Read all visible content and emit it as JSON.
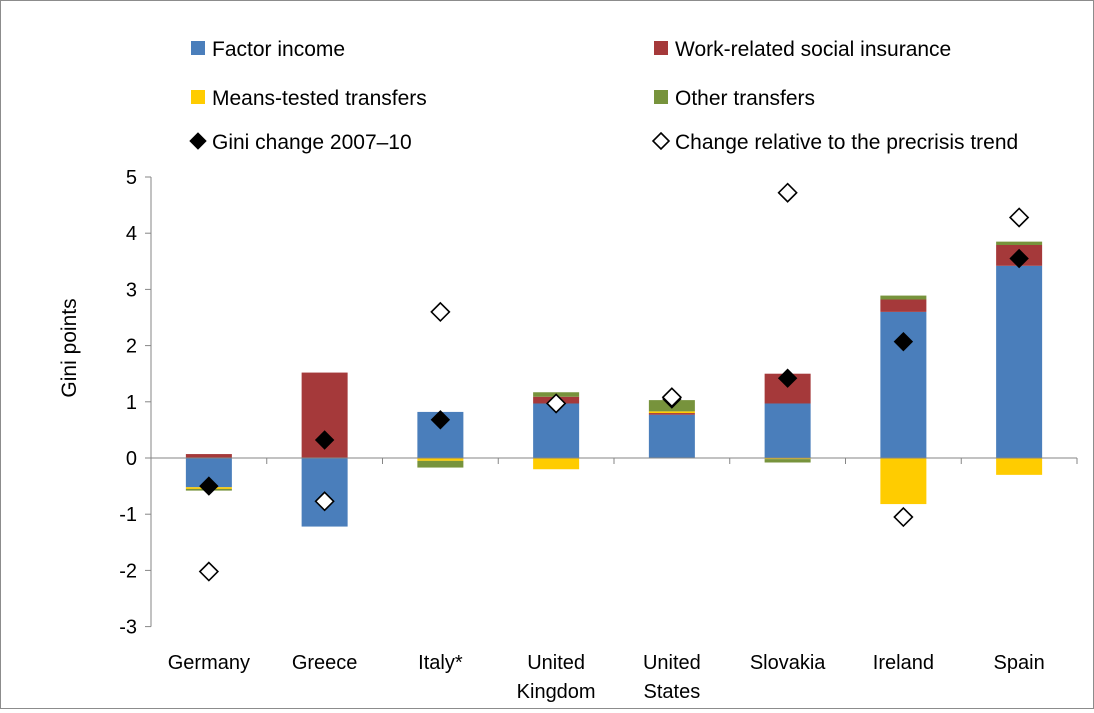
{
  "chart_data": {
    "type": "bar",
    "stacked": true,
    "title": "",
    "xlabel": "",
    "ylabel": "Gini points",
    "ylim": [
      -3,
      5
    ],
    "yticks": [
      "5",
      "4",
      "3",
      "2",
      "1",
      "0",
      "-1",
      "-2",
      "-3"
    ],
    "grid": false,
    "legend_position": "top",
    "categories": [
      [
        "Germany"
      ],
      [
        "Greece"
      ],
      [
        "Italy*"
      ],
      [
        "United",
        "Kingdom"
      ],
      [
        "United",
        "States"
      ],
      [
        "Slovakia"
      ],
      [
        "Ireland"
      ],
      [
        "Spain"
      ]
    ],
    "series": [
      {
        "name": "Factor income",
        "kind": "bar",
        "color": "#4a7ebb",
        "values": [
          -0.52,
          -1.22,
          0.82,
          0.97,
          0.77,
          0.97,
          2.6,
          3.42
        ]
      },
      {
        "name": "Work-related social insurance",
        "kind": "bar",
        "color": "#a5393a",
        "values": [
          0.07,
          1.52,
          0.0,
          0.12,
          0.03,
          0.53,
          0.22,
          0.37
        ]
      },
      {
        "name": "Means-tested transfers",
        "kind": "bar",
        "color": "#ffcc00",
        "values": [
          -0.03,
          0.0,
          -0.05,
          -0.2,
          0.03,
          -0.02,
          -0.82,
          -0.3
        ]
      },
      {
        "name": "Other transfers",
        "kind": "bar",
        "color": "#77933c",
        "values": [
          -0.03,
          0.0,
          -0.12,
          0.08,
          0.2,
          -0.06,
          0.07,
          0.06
        ]
      },
      {
        "name": "Gini change 2007–10",
        "kind": "marker",
        "style": "filled-diamond",
        "values": [
          -0.5,
          0.32,
          0.68,
          0.97,
          1.05,
          1.42,
          2.07,
          3.55
        ]
      },
      {
        "name": "Change relative to the precrisis trend",
        "kind": "marker",
        "style": "hollow-diamond",
        "values": [
          -2.02,
          -0.77,
          2.6,
          0.97,
          1.08,
          4.72,
          -1.05,
          4.28
        ]
      }
    ]
  }
}
